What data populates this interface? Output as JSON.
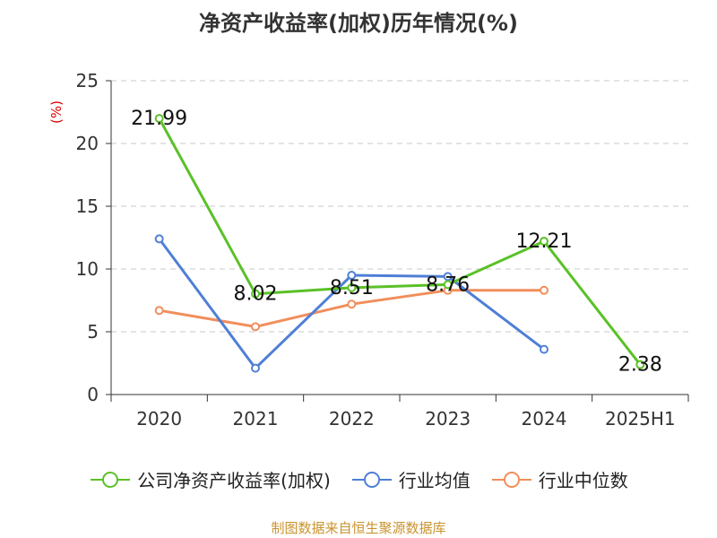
{
  "title": "净资产收益率(加权)历年情况(%)",
  "source": "制图数据来自恒生聚源数据库",
  "chart_data": {
    "type": "line",
    "title": "净资产收益率(加权)历年情况(%)",
    "ylabel": "(%)",
    "ylim": [
      0,
      25
    ],
    "yticks": [
      "0",
      "5",
      "10",
      "15",
      "20",
      "25"
    ],
    "categories": [
      "2020",
      "2021",
      "2022",
      "2023",
      "2024",
      "2025H1"
    ],
    "grid": true,
    "legend_position": "bottom",
    "series": [
      {
        "name": "公司净资产收益率(加权)",
        "color": "#5ac127",
        "values": [
          21.99,
          8.02,
          8.51,
          8.76,
          12.21,
          2.38
        ],
        "labels": [
          "21.99",
          "8.02",
          "8.51",
          "8.76",
          "12.21",
          "2.38"
        ]
      },
      {
        "name": "行业均值",
        "color": "#4f7fd6",
        "values": [
          12.4,
          2.1,
          9.5,
          9.4,
          3.6,
          null
        ]
      },
      {
        "name": "行业中位数",
        "color": "#f18e5b",
        "values": [
          6.7,
          5.4,
          7.2,
          8.3,
          8.3,
          null
        ]
      }
    ]
  }
}
